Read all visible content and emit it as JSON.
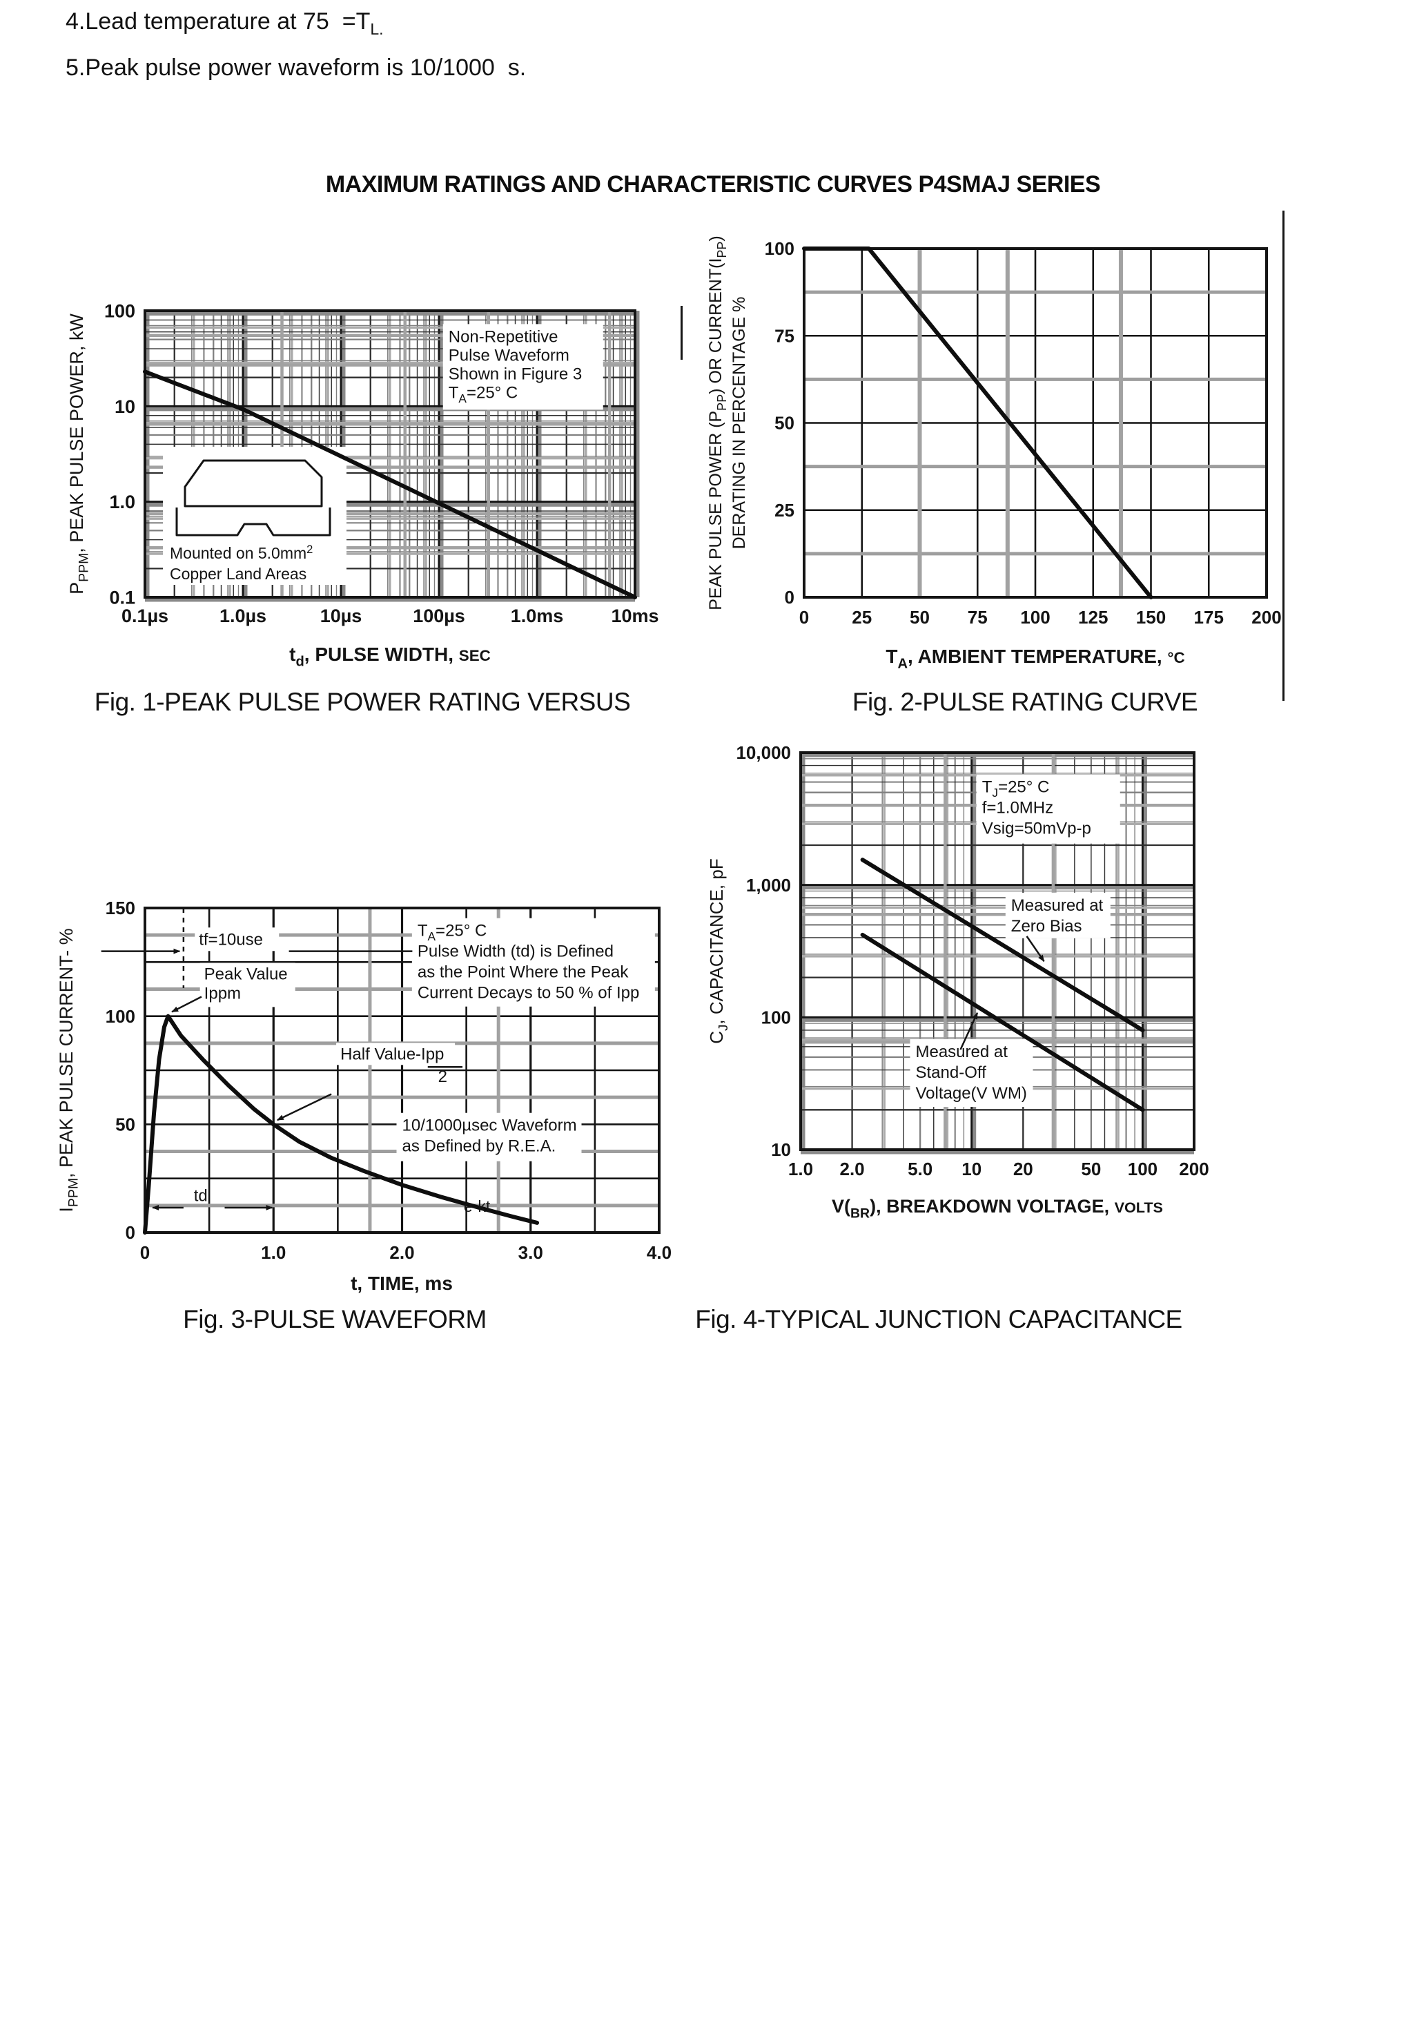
{
  "title": "MAXIMUM RATINGS AND CHARACTERISTIC CURVES P4SMAJ SERIES",
  "notes": {
    "line4_text": "4.Lead temperature at 75  =T",
    "line4_sub": "L.",
    "line5": "5.Peak pulse power waveform is 10/1000  s."
  },
  "captions": {
    "fig1": "Fig. 1-PEAK PULSE POWER RATING VERSUS",
    "fig2": "Fig. 2-PULSE RATING CURVE",
    "fig3": "Fig. 3-PULSE WAVEFORM",
    "fig4": "Fig. 4-TYPICAL JUNCTION CAPACITANCE"
  },
  "colors": {
    "ink": "#141414",
    "scan_gray": "#a2a2a2"
  },
  "chart_data": [
    {
      "dom_id": "fig1",
      "type": "line",
      "title": "Fig. 1-PEAK PULSE POWER RATING VERSUS",
      "plot": {
        "x0": 120,
        "y0": 35,
        "x1": 830,
        "y1": 450
      },
      "x": {
        "type": "log",
        "min": 1e-07,
        "max": 0.01,
        "tick_dy": 36,
        "tick_size": 27,
        "ticks": [
          {
            "v": 1e-07,
            "l": "0.1µs"
          },
          {
            "v": 1e-06,
            "l": "1.0µs"
          },
          {
            "v": 1e-05,
            "l": "10µs"
          },
          {
            "v": 0.0001,
            "l": "100µs"
          },
          {
            "v": 0.001,
            "l": "1.0ms"
          },
          {
            "v": 0.01,
            "l": "10ms"
          }
        ]
      },
      "y": {
        "type": "log",
        "min": 0.1,
        "max": 100,
        "tick_size": 27,
        "ticks": [
          {
            "v": 100,
            "l": "100"
          },
          {
            "v": 10,
            "l": "10"
          },
          {
            "v": 1,
            "l": "1.0"
          },
          {
            "v": 0.1,
            "l": "0.1"
          }
        ]
      },
      "x_title": {
        "x": 475,
        "y": 542,
        "size": 28,
        "segs": [
          {
            "t": "t"
          },
          {
            "t": "d",
            "sub": true
          },
          {
            "t": ", PULSE WIDTH, "
          },
          {
            "t": "SEC",
            "small": true
          }
        ]
      },
      "y_title": {
        "x": 30,
        "size": 27,
        "lines": [
          [
            {
              "t": "P"
            },
            {
              "t": "PPM",
              "sub": true
            },
            {
              "t": ", PEAK PULSE POWER, kW"
            }
          ]
        ]
      },
      "series": [
        {
          "name": "peak-pulse-power",
          "w": 6,
          "pts": [
            [
              1e-07,
              23
            ],
            [
              1e-06,
              9.3
            ],
            [
              0.01,
              0.1
            ]
          ]
        }
      ],
      "noise": [
        {
          "o": "h",
          "v": 55
        },
        {
          "o": "h",
          "v": 27
        },
        {
          "o": "h",
          "v": 6.5
        },
        {
          "o": "h",
          "v": 2.3
        },
        {
          "o": "h",
          "v": 0.75
        },
        {
          "o": "h",
          "v": 0.33
        },
        {
          "o": "v",
          "v": 2.5e-06
        },
        {
          "o": "v",
          "v": 4.5e-05
        },
        {
          "o": "v",
          "v": 0.00032
        },
        {
          "o": "v",
          "v": 0.0055
        }
      ],
      "annotations": [
        {
          "x": 0.000125,
          "y": 47,
          "size": 24,
          "lh": 27,
          "bg": [
            232,
            124,
            -8,
            -26
          ],
          "lines": [
            [
              "Non-Repetitive"
            ],
            [
              "Pulse Waveform"
            ],
            [
              "Shown in Figure 3"
            ],
            [
              {
                "t": "T"
              },
              {
                "t": "A",
                "sub": true
              },
              {
                "t": "=25° C"
              }
            ]
          ]
        }
      ],
      "inset": {
        "bg": [
          146,
          232,
          266,
          200
        ],
        "paths": [
          "M178,318 L178,290 L205,252 L352,252 L376,276 L376,318 Z",
          "M166,320 L166,360 L254,360 L264,344 L296,344 L306,360 L388,360 L388,320"
        ],
        "labels": [
          {
            "x": 156,
            "y": 394,
            "size": 23,
            "segs": [
              {
                "t": "Mounted on 5.0mm"
              },
              {
                "t": "2",
                "sup": true
              }
            ]
          },
          {
            "x": 156,
            "y": 424,
            "size": 23,
            "segs": [
              "Copper Land Areas"
            ]
          }
        ]
      }
    },
    {
      "dom_id": "fig2",
      "type": "line",
      "title": "Fig. 2-PULSE RATING CURVE",
      "plot": {
        "x0": 150,
        "y0": 40,
        "x1": 820,
        "y1": 545
      },
      "x": {
        "type": "linear",
        "min": 0,
        "max": 200,
        "major": 25,
        "tick_dy": 38,
        "tick_size": 26,
        "ticks": [
          {
            "v": 0,
            "l": "0"
          },
          {
            "v": 25,
            "l": "25"
          },
          {
            "v": 50,
            "l": "50"
          },
          {
            "v": 75,
            "l": "75"
          },
          {
            "v": 100,
            "l": "100"
          },
          {
            "v": 125,
            "l": "125"
          },
          {
            "v": 150,
            "l": "150"
          },
          {
            "v": 175,
            "l": "175"
          },
          {
            "v": 200,
            "l": "200"
          }
        ]
      },
      "y": {
        "type": "linear",
        "min": 0,
        "max": 100,
        "major": 25,
        "minor": 12.5,
        "tick_size": 26,
        "ticks": [
          {
            "v": 0,
            "l": "0"
          },
          {
            "v": 25,
            "l": "25"
          },
          {
            "v": 50,
            "l": "50"
          },
          {
            "v": 75,
            "l": "75"
          },
          {
            "v": 100,
            "l": "100"
          }
        ]
      },
      "x_title": {
        "x": 485,
        "y": 640,
        "size": 28,
        "segs": [
          {
            "t": "T"
          },
          {
            "t": "A",
            "sub": true
          },
          {
            "t": ", AMBIENT TEMPERATURE, "
          },
          {
            "t": "°C",
            "small": true
          }
        ]
      },
      "y_title": {
        "x": 30,
        "size": 25,
        "lines": [
          [
            {
              "t": "PEAK PULSE POWER (P"
            },
            {
              "t": "PP",
              "sub": true
            },
            {
              "t": ") OR CURRENT(I"
            },
            {
              "t": "PP",
              "sub": true
            },
            {
              "t": ")"
            }
          ],
          [
            {
              "t": "DERATING IN PERCENTAGE %"
            }
          ]
        ]
      },
      "series": [
        {
          "name": "derating",
          "w": 6,
          "pts": [
            [
              0,
              100
            ],
            [
              28,
              100
            ],
            [
              150,
              0
            ]
          ]
        }
      ],
      "noise": [
        {
          "o": "v",
          "v": 50,
          "w": 6
        },
        {
          "o": "v",
          "v": 88,
          "w": 6
        },
        {
          "o": "v",
          "v": 137,
          "w": 6
        }
      ]
    },
    {
      "dom_id": "fig3",
      "type": "line",
      "title": "Fig. 3-PULSE WAVEFORM",
      "plot": {
        "x0": 135,
        "y0": 45,
        "x1": 880,
        "y1": 515
      },
      "x": {
        "type": "linear",
        "min": 0,
        "max": 4,
        "major": 0.5,
        "emph": 1,
        "tick_dy": 38,
        "tick_size": 26,
        "ticks": [
          {
            "v": 0,
            "l": "0"
          },
          {
            "v": 1,
            "l": "1.0"
          },
          {
            "v": 2,
            "l": "2.0"
          },
          {
            "v": 3,
            "l": "3.0"
          },
          {
            "v": 4,
            "l": "4.0"
          }
        ]
      },
      "y": {
        "type": "linear",
        "min": 0,
        "max": 150,
        "major": 25,
        "minor": 12.5,
        "tick_size": 26,
        "ticks": [
          {
            "v": 0,
            "l": "0"
          },
          {
            "v": 50,
            "l": "50"
          },
          {
            "v": 100,
            "l": "100"
          },
          {
            "v": 150,
            "l": "150"
          }
        ]
      },
      "x_title": {
        "x": 507,
        "y": 598,
        "size": 28,
        "segs": [
          {
            "t": "t, TIME, ms"
          }
        ]
      },
      "y_title": {
        "x": 30,
        "size": 27,
        "lines": [
          [
            {
              "t": "I"
            },
            {
              "t": "PPM",
              "sub": true
            },
            {
              "t": ", PEAK PULSE CURRENT- %"
            }
          ]
        ]
      },
      "series": [
        {
          "name": "pulse-waveform",
          "w": 6,
          "pts": [
            [
              0,
              0
            ],
            [
              0.03,
              22
            ],
            [
              0.07,
              55
            ],
            [
              0.11,
              80
            ],
            [
              0.15,
              95
            ],
            [
              0.18,
              100
            ],
            [
              0.28,
              91
            ],
            [
              0.45,
              80
            ],
            [
              0.65,
              68
            ],
            [
              0.85,
              57
            ],
            [
              1,
              50
            ],
            [
              1.2,
              42
            ],
            [
              1.45,
              34.5
            ],
            [
              1.7,
              28.5
            ],
            [
              2,
              22
            ],
            [
              2.3,
              16.5
            ],
            [
              2.6,
              11.5
            ],
            [
              2.85,
              7.5
            ],
            [
              3.05,
              4.5
            ]
          ]
        }
      ],
      "annotations": [
        {
          "x": 0.42,
          "y": 133,
          "size": 24,
          "bg": [
            122,
            34,
            -6,
            -25
          ],
          "lines": [
            [
              "tf=10use"
            ]
          ]
        },
        {
          "x": 0.46,
          "y": 117,
          "size": 24,
          "lh": 28,
          "bg": [
            138,
            64,
            -6,
            -24
          ],
          "lines": [
            [
              "Peak Value"
            ],
            [
              "Ippm"
            ]
          ]
        },
        {
          "x": 1.52,
          "y": 80,
          "size": 24,
          "bg": [
            172,
            32,
            -6,
            -24
          ],
          "lines": [
            [
              "Half Value-Ipp"
            ]
          ]
        },
        {
          "x": 2.28,
          "y": 69.5,
          "size": 24,
          "lines": [
            [
              "2"
            ]
          ]
        },
        {
          "x": 2.12,
          "y": 137,
          "size": 24,
          "lh": 30,
          "bg": [
            352,
            128,
            -8,
            -26
          ],
          "lines": [
            [
              {
                "t": "T"
              },
              {
                "t": "A",
                "sub": true
              },
              {
                "t": "=25° C"
              }
            ],
            [
              "Pulse Width (td) is Defined"
            ],
            [
              "as the Point Where the Peak"
            ],
            [
              "Current Decays to 50 % of Ipp"
            ]
          ]
        },
        {
          "x": 2.0,
          "y": 47,
          "size": 24,
          "lh": 30,
          "bg": [
            268,
            70,
            -8,
            -26
          ],
          "lines": [
            [
              "10/1000µsec Waveform"
            ],
            [
              "as Defined by R.E.A."
            ]
          ]
        },
        {
          "x": 0.38,
          "y": 14.5,
          "size": 24,
          "lines": [
            [
              "td"
            ]
          ]
        },
        {
          "x": 2.48,
          "y": 9.5,
          "size": 23,
          "lines": [
            [
              "e-kt"
            ]
          ]
        }
      ],
      "arrows": [
        {
          "x1": -0.34,
          "y1": 130,
          "x2": 0.27,
          "y2": 130
        },
        {
          "x1": 0.44,
          "y1": 109,
          "x2": 0.21,
          "y2": 102
        },
        {
          "x1": 1.45,
          "y1": 64,
          "x2": 1.03,
          "y2": 52
        },
        {
          "x1": 0.3,
          "y1": 11.5,
          "x2": 0.06,
          "y2": 11.5
        },
        {
          "x1": 0.62,
          "y1": 11.5,
          "x2": 0.99,
          "y2": 11.5
        }
      ],
      "lines": [
        {
          "x1": 1.12,
          "y1": 130,
          "x2": 2.08,
          "y2": 130,
          "w": 2.5
        },
        {
          "x1": 0.3,
          "y1": 150,
          "x2": 0.3,
          "y2": 113,
          "w": 2.5,
          "dash": "7,7"
        },
        {
          "x1": 2.2,
          "y1": 76.5,
          "x2": 2.47,
          "y2": 76.5,
          "w": 2.5
        }
      ],
      "noise": [
        {
          "o": "v",
          "v": 1.75,
          "w": 5
        },
        {
          "o": "v",
          "v": 2.75,
          "w": 5
        }
      ]
    },
    {
      "dom_id": "fig4",
      "type": "line",
      "title": "Fig. 4-TYPICAL JUNCTION CAPACITANCE",
      "plot": {
        "x0": 145,
        "y0": 40,
        "x1": 715,
        "y1": 615
      },
      "x": {
        "type": "log",
        "min": 1,
        "max": 200,
        "tick_dy": 37,
        "tick_size": 26,
        "ticks": [
          {
            "v": 1,
            "l": "1.0"
          },
          {
            "v": 2,
            "l": "2.0"
          },
          {
            "v": 5,
            "l": "5.0"
          },
          {
            "v": 10,
            "l": "10"
          },
          {
            "v": 20,
            "l": "20"
          },
          {
            "v": 50,
            "l": "50"
          },
          {
            "v": 100,
            "l": "100"
          },
          {
            "v": 200,
            "l": "200"
          }
        ]
      },
      "y": {
        "type": "log",
        "min": 10,
        "max": 10000,
        "tick_size": 26,
        "ticks": [
          {
            "v": 10,
            "l": "10"
          },
          {
            "v": 100,
            "l": "100"
          },
          {
            "v": 1000,
            "l": "1,000"
          },
          {
            "v": 10000,
            "l": "10,000"
          }
        ]
      },
      "x_title": {
        "x": 430,
        "y": 706,
        "size": 27,
        "segs": [
          {
            "t": "V("
          },
          {
            "t": "BR",
            "sub": true
          },
          {
            "t": "), BREAKDOWN VOLTAGE, "
          },
          {
            "t": "VOLTS",
            "small": true
          }
        ]
      },
      "y_title": {
        "x": 32,
        "size": 26,
        "lines": [
          [
            {
              "t": "C"
            },
            {
              "t": "J",
              "sub": true
            },
            {
              "t": ", CAPACITANCE, pF"
            }
          ]
        ]
      },
      "series": [
        {
          "name": "measured-at-zero-bias",
          "w": 6,
          "pts": [
            [
              2.3,
              1550
            ],
            [
              100,
              80
            ]
          ]
        },
        {
          "name": "measured-at-stand-off-voltage",
          "w": 6,
          "pts": [
            [
              2.3,
              420
            ],
            [
              100,
              20
            ]
          ]
        }
      ],
      "annotations": [
        {
          "x": 11.5,
          "y": 5000,
          "size": 24,
          "lh": 30,
          "bg": [
            208,
            100,
            -8,
            -26
          ],
          "lines": [
            [
              {
                "t": "T"
              },
              {
                "t": "J",
                "sub": true
              },
              {
                "t": "=25° C"
              }
            ],
            [
              "f=1.0MHz"
            ],
            [
              "Vsig=50mVp-p"
            ]
          ]
        },
        {
          "x": 17,
          "y": 640,
          "size": 24,
          "lh": 30,
          "bg": [
            152,
            66,
            -8,
            -26
          ],
          "lines": [
            [
              "Measured at"
            ],
            [
              "Zero Bias"
            ]
          ]
        },
        {
          "x": 4.7,
          "y": 50,
          "size": 24,
          "lh": 30,
          "bg": [
            178,
            98,
            -8,
            -26
          ],
          "lines": [
            [
              "Measured at"
            ],
            [
              "Stand-Off"
            ],
            [
              "Voltage(V WM)"
            ]
          ]
        }
      ],
      "arrows": [
        {
          "x1": 21,
          "y1": 410,
          "x2": 26.5,
          "y2": 265
        },
        {
          "x1": 8.6,
          "y1": 57,
          "x2": 10.8,
          "y2": 108
        }
      ],
      "noise": [
        {
          "o": "h",
          "v": 4000
        },
        {
          "o": "h",
          "v": 600
        },
        {
          "o": "h",
          "v": 65
        },
        {
          "o": "v",
          "v": 7
        },
        {
          "o": "v",
          "v": 30
        }
      ]
    }
  ]
}
